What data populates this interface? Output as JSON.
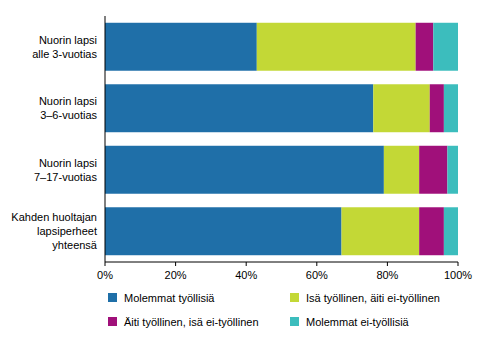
{
  "chart_data": {
    "type": "bar",
    "orientation": "horizontal",
    "stacked": true,
    "grid": false,
    "legend": "bottom",
    "categories": [
      "Nuorin lapsi\nalle 3-vuotias",
      "Nuorin lapsi\n3–6-vuotias",
      "Nuorin lapsi\n7–17-vuotias",
      "Kahden huoltajan\nlapsiperheet\nyhteensä"
    ],
    "series": [
      {
        "name": "Molemmat työllisiä",
        "color": "#1f6fa8",
        "values": [
          43,
          76,
          79,
          67
        ]
      },
      {
        "name": "Isä työllinen, äiti ei-työllinen",
        "color": "#c3d836",
        "values": [
          45,
          16,
          10,
          22
        ]
      },
      {
        "name": "Äiti työllinen, isä ei-työllinen",
        "color": "#a0107a",
        "values": [
          5,
          4,
          8,
          7
        ]
      },
      {
        "name": "Molemmat ei-työllisiä",
        "color": "#3cbdbd",
        "values": [
          7,
          4,
          3,
          4
        ]
      }
    ],
    "xlim": [
      0,
      100
    ],
    "xticks": [
      {
        "value": 0,
        "label": "0%"
      },
      {
        "value": 20,
        "label": "20%"
      },
      {
        "value": 40,
        "label": "40%"
      },
      {
        "value": 60,
        "label": "60%"
      },
      {
        "value": 80,
        "label": "80%"
      },
      {
        "value": 100,
        "label": "100%"
      }
    ]
  }
}
